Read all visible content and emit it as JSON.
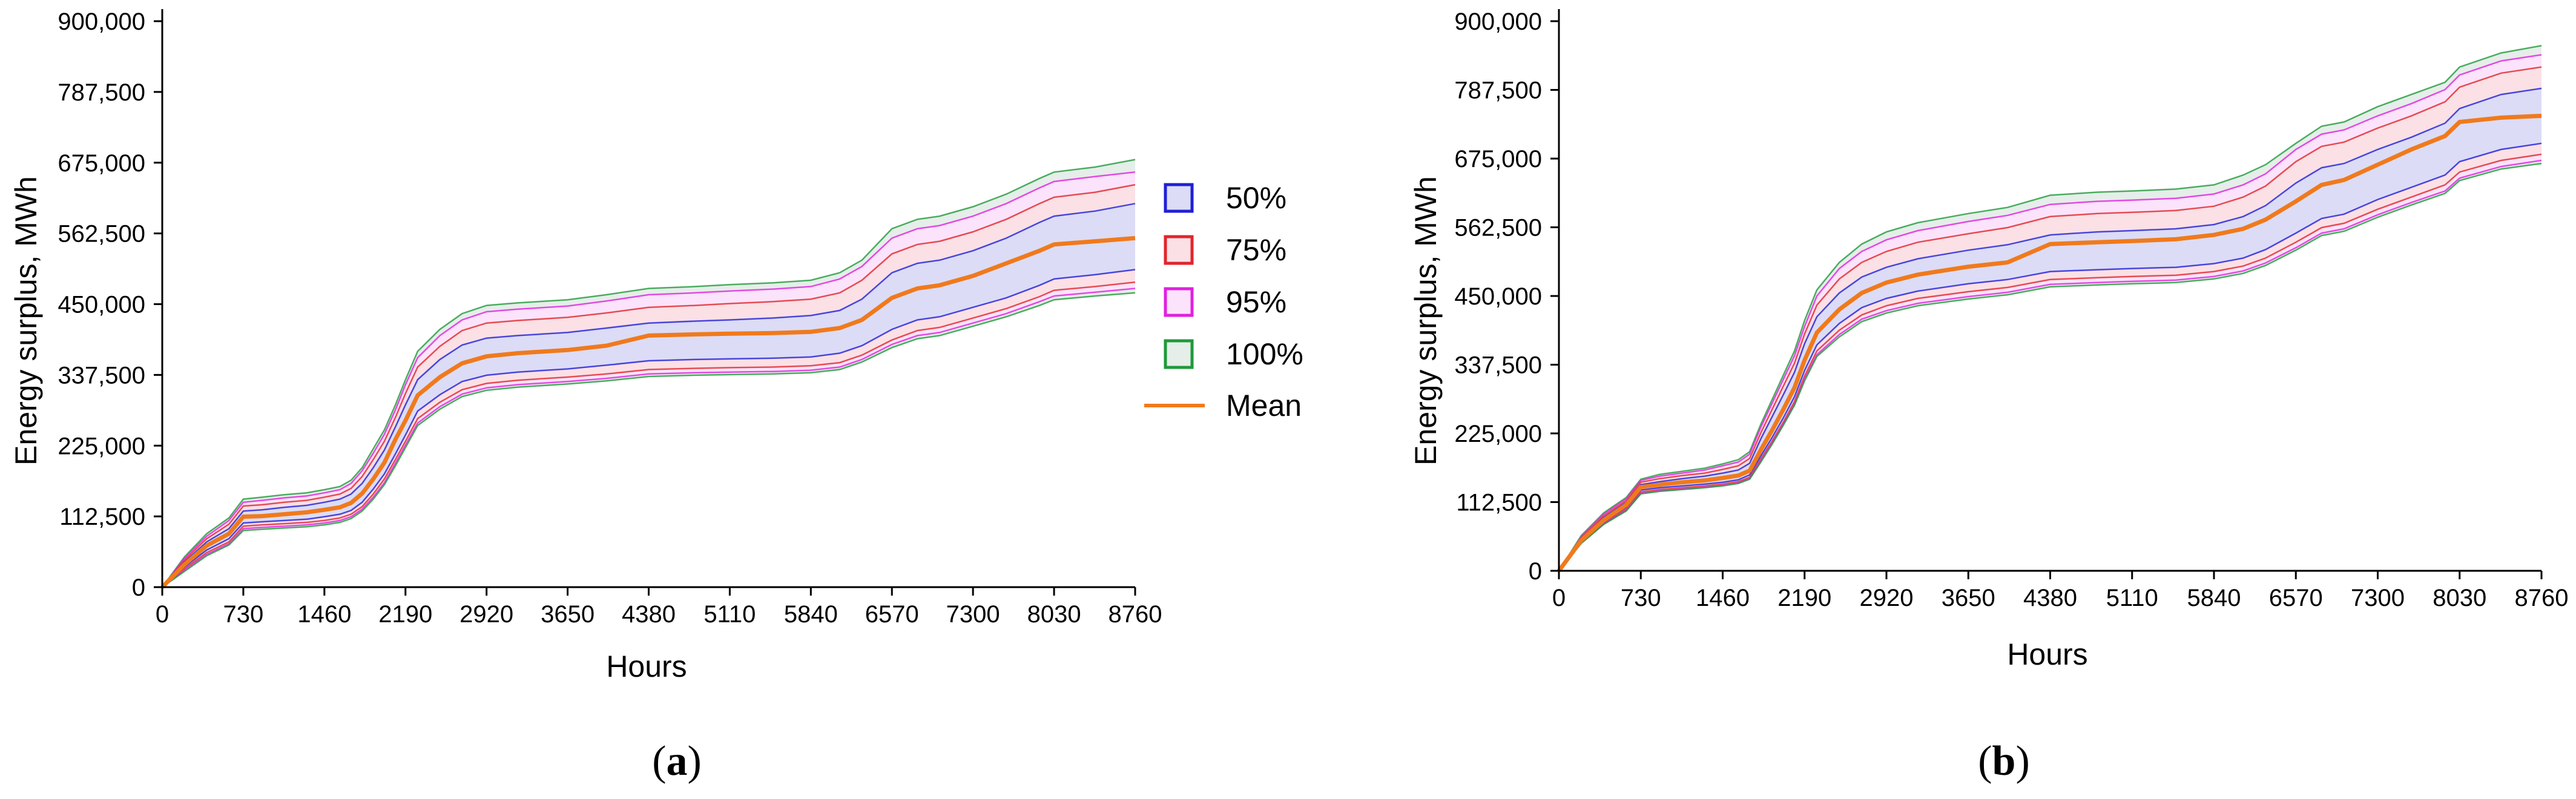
{
  "figure": {
    "panels": [
      {
        "caption_letter": "a"
      },
      {
        "caption_letter": "b"
      }
    ],
    "legend": {
      "entries": [
        {
          "label": "50%",
          "color": "#1f1fd6",
          "fill": "#dcdcf7"
        },
        {
          "label": "75%",
          "color": "#e0262b",
          "fill": "#fbe0e6"
        },
        {
          "label": "95%",
          "color": "#e020e0",
          "fill": "#fbe3fb"
        },
        {
          "label": "100%",
          "color": "#1f9a3a",
          "fill": "#e5eee9"
        }
      ],
      "mean_label": "Mean",
      "mean_color": "#f07a1c"
    }
  },
  "chart_data": [
    {
      "type": "area",
      "panel": "a",
      "xlabel": "Hours",
      "ylabel": "Energy surplus, MWh",
      "xlim": [
        0,
        8760
      ],
      "ylim": [
        0,
        900000
      ],
      "x_ticks": [
        0,
        730,
        1460,
        2190,
        2920,
        3650,
        4380,
        5110,
        5840,
        6570,
        7300,
        8030,
        8760
      ],
      "y_ticks": [
        0,
        112500,
        225000,
        337500,
        450000,
        562500,
        675000,
        787500,
        900000
      ],
      "y_tick_labels": [
        "0",
        "112,500",
        "225,000",
        "337,500",
        "450,000",
        "562,500",
        "675,000",
        "787,500",
        "900,000"
      ],
      "x": [
        0,
        200,
        400,
        600,
        730,
        900,
        1100,
        1300,
        1460,
        1600,
        1700,
        1800,
        1900,
        2000,
        2100,
        2190,
        2300,
        2500,
        2700,
        2920,
        3200,
        3650,
        4000,
        4380,
        4800,
        5110,
        5500,
        5840,
        6100,
        6300,
        6570,
        6800,
        7000,
        7300,
        7600,
        7900,
        8030,
        8400,
        8760
      ],
      "series": [
        {
          "name": "100% upper",
          "values": [
            0,
            48000,
            85000,
            110000,
            140000,
            143000,
            147000,
            150000,
            155000,
            160000,
            170000,
            190000,
            220000,
            250000,
            290000,
            330000,
            375000,
            410000,
            435000,
            448000,
            452000,
            457000,
            465000,
            475000,
            478000,
            481000,
            484000,
            488000,
            500000,
            520000,
            570000,
            585000,
            590000,
            605000,
            625000,
            650000,
            660000,
            668000,
            680000
          ]
        },
        {
          "name": "95% upper",
          "values": [
            0,
            46000,
            81000,
            106000,
            135000,
            138000,
            142000,
            145000,
            150000,
            155000,
            165000,
            185000,
            213000,
            243000,
            282000,
            322000,
            365000,
            400000,
            425000,
            438000,
            442000,
            447000,
            455000,
            465000,
            468000,
            471000,
            474000,
            478000,
            490000,
            510000,
            555000,
            570000,
            575000,
            590000,
            610000,
            635000,
            645000,
            653000,
            660000
          ]
        },
        {
          "name": "75% upper",
          "values": [
            0,
            43000,
            77000,
            100000,
            129000,
            131000,
            135000,
            138000,
            143000,
            148000,
            157000,
            176000,
            203000,
            232000,
            270000,
            308000,
            350000,
            383000,
            408000,
            420000,
            424000,
            429000,
            436000,
            445000,
            448000,
            451000,
            454000,
            458000,
            468000,
            488000,
            530000,
            545000,
            550000,
            565000,
            585000,
            610000,
            620000,
            628000,
            640000
          ]
        },
        {
          "name": "50% upper",
          "values": [
            0,
            40000,
            72000,
            93000,
            121000,
            123000,
            127000,
            130000,
            135000,
            140000,
            148000,
            165000,
            190000,
            218000,
            255000,
            290000,
            330000,
            362000,
            385000,
            396000,
            400000,
            405000,
            412000,
            420000,
            423000,
            425000,
            428000,
            432000,
            440000,
            458000,
            500000,
            515000,
            520000,
            535000,
            555000,
            580000,
            590000,
            598000,
            610000
          ]
        },
        {
          "name": "Mean",
          "values": [
            0,
            36000,
            66000,
            85000,
            112000,
            113000,
            116000,
            119000,
            123000,
            127000,
            134000,
            149000,
            172000,
            198000,
            235000,
            265000,
            305000,
            334000,
            356000,
            367000,
            372000,
            377000,
            384000,
            400000,
            402000,
            403000,
            404000,
            406000,
            412000,
            425000,
            460000,
            475000,
            480000,
            495000,
            515000,
            535000,
            545000,
            550000,
            555000
          ]
        },
        {
          "name": "50% lower",
          "values": [
            0,
            32000,
            59000,
            77000,
            102000,
            104000,
            106000,
            108000,
            112000,
            116000,
            122000,
            135000,
            156000,
            180000,
            212000,
            242000,
            280000,
            306000,
            327000,
            337000,
            342000,
            347000,
            353000,
            360000,
            362000,
            363000,
            364000,
            366000,
            372000,
            384000,
            410000,
            425000,
            430000,
            445000,
            460000,
            480000,
            490000,
            497000,
            505000
          ]
        },
        {
          "name": "75% lower",
          "values": [
            0,
            29000,
            55000,
            72000,
            97000,
            99000,
            101000,
            103000,
            106000,
            110000,
            116000,
            128000,
            148000,
            172000,
            203000,
            232000,
            268000,
            294000,
            314000,
            324000,
            329000,
            334000,
            339000,
            346000,
            348000,
            349000,
            350000,
            352000,
            357000,
            369000,
            393000,
            408000,
            413000,
            428000,
            443000,
            462000,
            472000,
            478000,
            485000
          ]
        },
        {
          "name": "95% lower",
          "values": [
            0,
            27000,
            52000,
            69000,
            93000,
            95000,
            97000,
            99000,
            102000,
            106000,
            112000,
            124000,
            143000,
            166000,
            197000,
            226000,
            261000,
            287000,
            307000,
            317000,
            322000,
            327000,
            332000,
            339000,
            341000,
            342000,
            343000,
            345000,
            350000,
            362000,
            386000,
            400000,
            405000,
            420000,
            435000,
            454000,
            463000,
            469000,
            475000
          ]
        },
        {
          "name": "100% lower",
          "values": [
            0,
            25000,
            50000,
            67000,
            90000,
            92000,
            94000,
            96000,
            99000,
            103000,
            109000,
            121000,
            140000,
            163000,
            193000,
            222000,
            257000,
            283000,
            303000,
            313000,
            318000,
            323000,
            328000,
            335000,
            337000,
            338000,
            339000,
            341000,
            346000,
            358000,
            381000,
            395000,
            400000,
            415000,
            430000,
            448000,
            457000,
            463000,
            468000
          ]
        }
      ]
    },
    {
      "type": "area",
      "panel": "b",
      "xlabel": "Hours",
      "ylabel": "Energy surplus, MWh",
      "xlim": [
        0,
        8760
      ],
      "ylim": [
        0,
        900000
      ],
      "x_ticks": [
        0,
        730,
        1460,
        2190,
        2920,
        3650,
        4380,
        5110,
        5840,
        6570,
        7300,
        8030,
        8760
      ],
      "y_ticks": [
        0,
        112500,
        225000,
        337500,
        450000,
        562500,
        675000,
        787500,
        900000
      ],
      "y_tick_labels": [
        "0",
        "112,500",
        "225,000",
        "337,500",
        "450,000",
        "562,500",
        "675,000",
        "787,500",
        "900,000"
      ],
      "x": [
        0,
        200,
        400,
        600,
        730,
        900,
        1100,
        1300,
        1460,
        1600,
        1700,
        1800,
        1900,
        2000,
        2100,
        2190,
        2300,
        2500,
        2700,
        2920,
        3200,
        3650,
        4000,
        4380,
        4800,
        5110,
        5500,
        5840,
        6100,
        6300,
        6570,
        6800,
        7000,
        7300,
        7600,
        7900,
        8030,
        8400,
        8760
      ],
      "series": [
        {
          "name": "100% upper",
          "values": [
            0,
            58000,
            95000,
            120000,
            150000,
            158000,
            163000,
            168000,
            175000,
            182000,
            195000,
            240000,
            280000,
            320000,
            360000,
            410000,
            460000,
            505000,
            535000,
            555000,
            570000,
            585000,
            595000,
            615000,
            620000,
            622000,
            625000,
            632000,
            648000,
            665000,
            700000,
            728000,
            735000,
            760000,
            780000,
            800000,
            825000,
            848000,
            860000
          ]
        },
        {
          "name": "95% upper",
          "values": [
            0,
            56000,
            93000,
            118000,
            148000,
            155000,
            160000,
            165000,
            172000,
            178000,
            191000,
            235000,
            274000,
            313000,
            352000,
            400000,
            450000,
            495000,
            523000,
            542000,
            557000,
            572000,
            582000,
            600000,
            605000,
            607000,
            610000,
            617000,
            632000,
            650000,
            690000,
            715000,
            722000,
            745000,
            765000,
            788000,
            812000,
            835000,
            845000
          ]
        },
        {
          "name": "75% upper",
          "values": [
            0,
            54000,
            90000,
            115000,
            145000,
            151000,
            156000,
            160000,
            166000,
            172000,
            184000,
            226000,
            264000,
            302000,
            340000,
            388000,
            435000,
            478000,
            505000,
            523000,
            538000,
            552000,
            562000,
            580000,
            585000,
            587000,
            590000,
            597000,
            612000,
            630000,
            670000,
            695000,
            702000,
            725000,
            745000,
            768000,
            792000,
            815000,
            825000
          ]
        },
        {
          "name": "50% upper",
          "values": [
            0,
            52000,
            87000,
            112000,
            141000,
            146000,
            151000,
            155000,
            160000,
            165000,
            176000,
            216000,
            252000,
            288000,
            325000,
            372000,
            416000,
            455000,
            481000,
            497000,
            511000,
            525000,
            534000,
            550000,
            555000,
            557000,
            560000,
            567000,
            580000,
            598000,
            635000,
            660000,
            667000,
            690000,
            710000,
            733000,
            757000,
            780000,
            790000
          ]
        },
        {
          "name": "Mean",
          "values": [
            0,
            50000,
            83000,
            108000,
            137000,
            141000,
            145000,
            148000,
            152000,
            156000,
            164000,
            198000,
            230000,
            264000,
            300000,
            345000,
            390000,
            428000,
            455000,
            472000,
            485000,
            498000,
            505000,
            535000,
            538000,
            540000,
            543000,
            550000,
            560000,
            575000,
            605000,
            632000,
            640000,
            665000,
            690000,
            712000,
            735000,
            742000,
            745000
          ]
        },
        {
          "name": "50% lower",
          "values": [
            0,
            48000,
            80000,
            104000,
            132000,
            136000,
            139000,
            142000,
            145000,
            149000,
            157000,
            188000,
            218000,
            250000,
            285000,
            328000,
            370000,
            405000,
            431000,
            446000,
            458000,
            470000,
            477000,
            490000,
            493000,
            495000,
            497000,
            503000,
            512000,
            526000,
            553000,
            577000,
            584000,
            608000,
            628000,
            648000,
            670000,
            690000,
            700000
          ]
        },
        {
          "name": "75% lower",
          "values": [
            0,
            47000,
            78000,
            101000,
            129000,
            133000,
            136000,
            139000,
            142000,
            146000,
            153000,
            183000,
            212000,
            243000,
            277000,
            319000,
            360000,
            394000,
            419000,
            434000,
            446000,
            457000,
            464000,
            477000,
            480000,
            482000,
            484000,
            490000,
            499000,
            512000,
            538000,
            562000,
            569000,
            592000,
            612000,
            632000,
            653000,
            672000,
            682000
          ]
        },
        {
          "name": "95% lower",
          "values": [
            0,
            46000,
            77000,
            99000,
            127000,
            131000,
            134000,
            137000,
            140000,
            144000,
            151000,
            180000,
            209000,
            240000,
            273000,
            314000,
            354000,
            387000,
            412000,
            426000,
            438000,
            449000,
            456000,
            469000,
            472000,
            474000,
            476000,
            482000,
            491000,
            504000,
            529000,
            553000,
            560000,
            583000,
            603000,
            622000,
            643000,
            662000,
            672000
          ]
        },
        {
          "name": "100% lower",
          "values": [
            0,
            45000,
            76000,
            98000,
            126000,
            130000,
            133000,
            136000,
            139000,
            143000,
            150000,
            178000,
            207000,
            238000,
            271000,
            311000,
            351000,
            383000,
            408000,
            422000,
            434000,
            445000,
            452000,
            465000,
            468000,
            470000,
            472000,
            478000,
            487000,
            500000,
            525000,
            549000,
            556000,
            579000,
            599000,
            618000,
            639000,
            658000,
            667000
          ]
        }
      ]
    }
  ]
}
